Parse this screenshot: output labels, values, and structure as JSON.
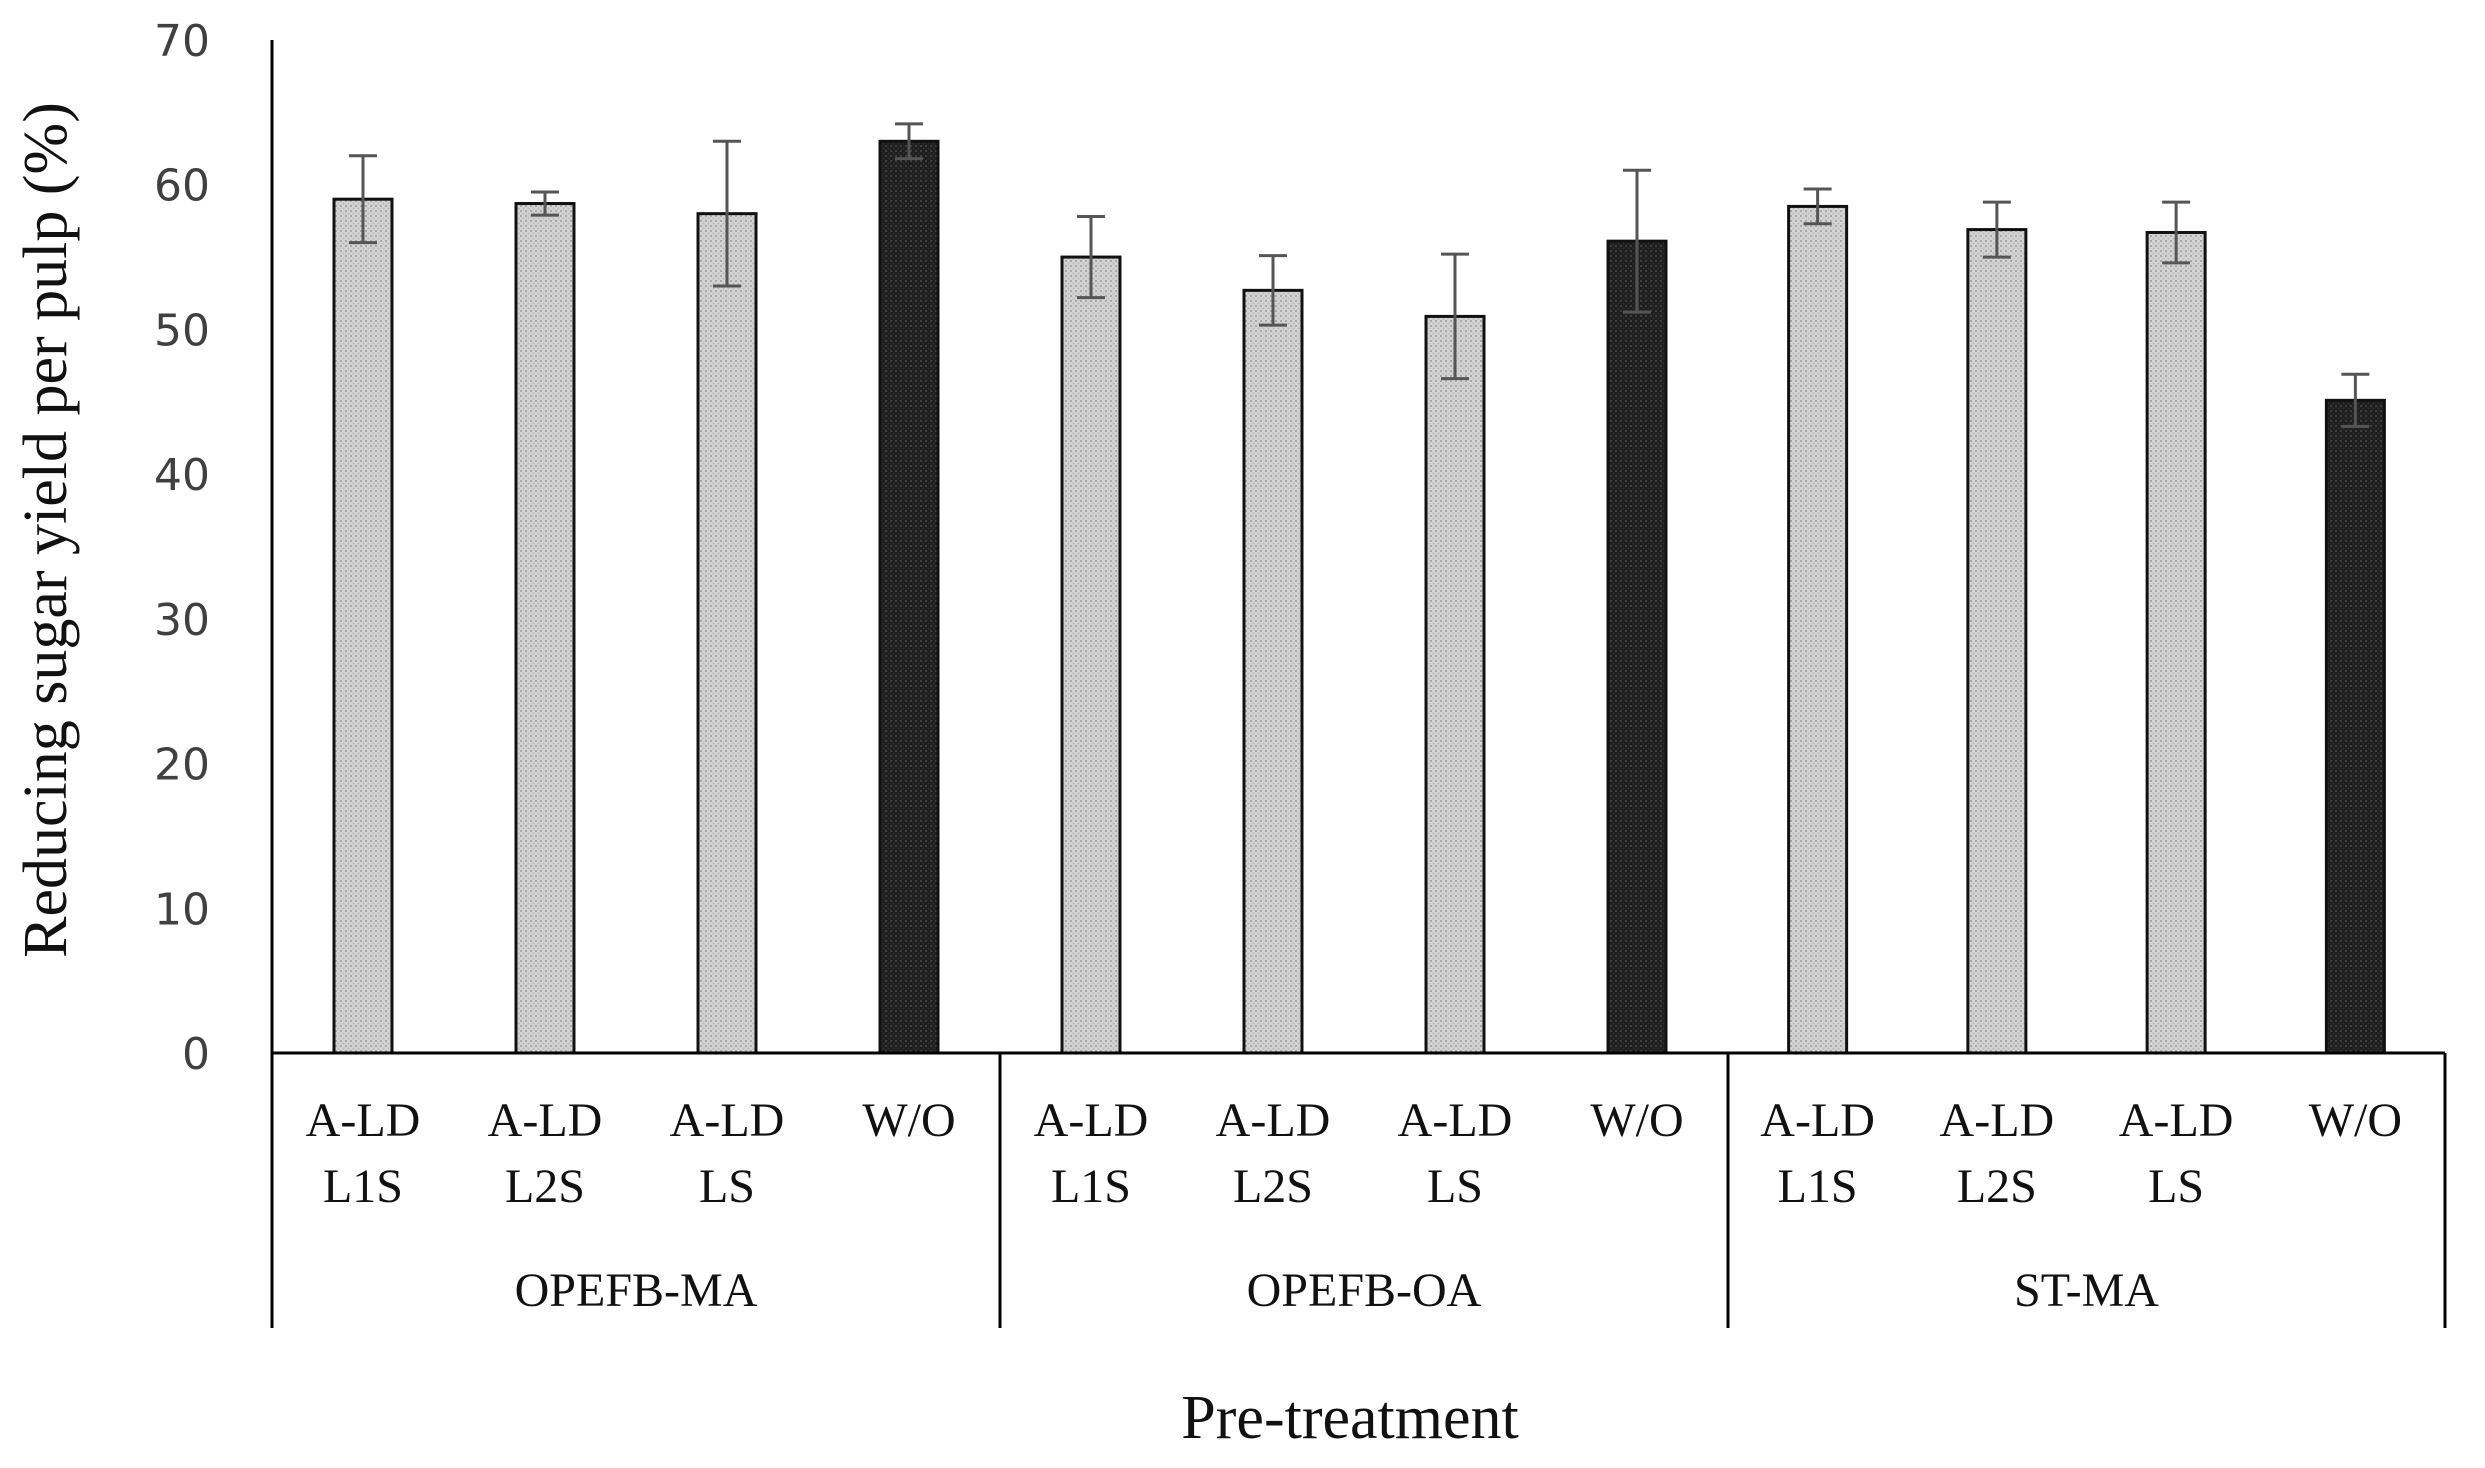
{
  "chart_data": {
    "type": "bar",
    "title": "",
    "xlabel": "Pre-treatment",
    "ylabel": "Reducing sugar yield per pulp (%)",
    "ylim": [
      0,
      70
    ],
    "yticks": [
      0,
      10,
      20,
      30,
      40,
      50,
      60,
      70
    ],
    "grid": false,
    "groups": [
      {
        "label": "OPEFB-MA",
        "bars": [
          {
            "label_lines": [
              "A-LD",
              "L1S"
            ],
            "value": 59.0,
            "error": 3.0,
            "style": "light"
          },
          {
            "label_lines": [
              "A-LD",
              "L2S"
            ],
            "value": 58.7,
            "error": 0.8,
            "style": "light"
          },
          {
            "label_lines": [
              "A-LD",
              "LS"
            ],
            "value": 58.0,
            "error": 5.0,
            "style": "light"
          },
          {
            "label_lines": [
              "W/O"
            ],
            "value": 63.0,
            "error": 1.2,
            "style": "dark"
          }
        ]
      },
      {
        "label": "OPEFB-OA",
        "bars": [
          {
            "label_lines": [
              "A-LD",
              "L1S"
            ],
            "value": 55.0,
            "error": 2.8,
            "style": "light"
          },
          {
            "label_lines": [
              "A-LD",
              "L2S"
            ],
            "value": 52.7,
            "error": 2.4,
            "style": "light"
          },
          {
            "label_lines": [
              "A-LD",
              "LS"
            ],
            "value": 50.9,
            "error": 4.3,
            "style": "light"
          },
          {
            "label_lines": [
              "W/O"
            ],
            "value": 56.1,
            "error": 4.9,
            "style": "dark"
          }
        ]
      },
      {
        "label": "ST-MA",
        "bars": [
          {
            "label_lines": [
              "A-LD",
              "L1S"
            ],
            "value": 58.5,
            "error": 1.2,
            "style": "light"
          },
          {
            "label_lines": [
              "A-LD",
              "L2S"
            ],
            "value": 56.9,
            "error": 1.9,
            "style": "light"
          },
          {
            "label_lines": [
              "A-LD",
              "LS"
            ],
            "value": 56.7,
            "error": 2.1,
            "style": "light"
          },
          {
            "label_lines": [
              "W/O"
            ],
            "value": 45.1,
            "error": 1.8,
            "style": "dark"
          }
        ]
      }
    ]
  },
  "colors": {
    "light_bar_fill": "#d4d4d4",
    "dark_bar_fill": "#1e1e1e",
    "bar_stroke": "#111111",
    "error_bar": "#555555",
    "axis": "#000000"
  }
}
